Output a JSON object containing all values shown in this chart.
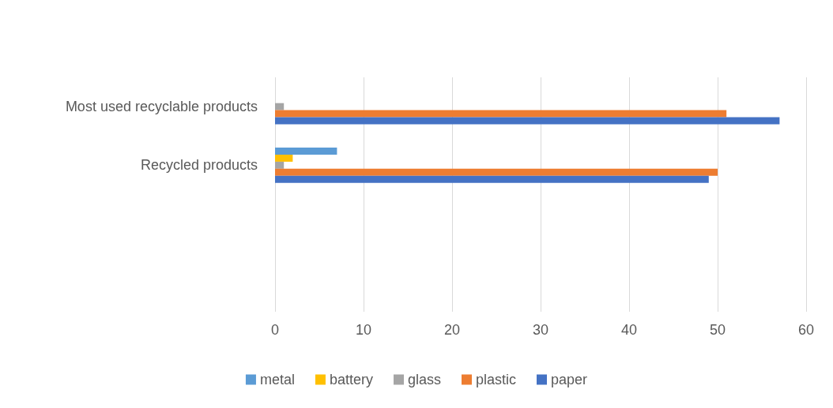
{
  "chart_data": {
    "type": "bar",
    "orientation": "horizontal",
    "categories": [
      "Most used recyclable products",
      "Recycled products",
      null,
      null
    ],
    "series": [
      {
        "name": "metal",
        "color": "#5b9bd5",
        "values": [
          0,
          7,
          null,
          null
        ]
      },
      {
        "name": "battery",
        "color": "#ffc000",
        "values": [
          0,
          2,
          null,
          null
        ]
      },
      {
        "name": "glass",
        "color": "#a5a5a5",
        "values": [
          1,
          1,
          null,
          null
        ]
      },
      {
        "name": "plastic",
        "color": "#ed7d31",
        "values": [
          51,
          50,
          null,
          null
        ]
      },
      {
        "name": "paper",
        "color": "#4472c4",
        "values": [
          57,
          49,
          null,
          null
        ]
      }
    ],
    "xlim": [
      0,
      60
    ],
    "xticks": [
      0,
      10,
      20,
      30,
      40,
      50,
      60
    ],
    "grid": "x",
    "legend": "bottom"
  }
}
